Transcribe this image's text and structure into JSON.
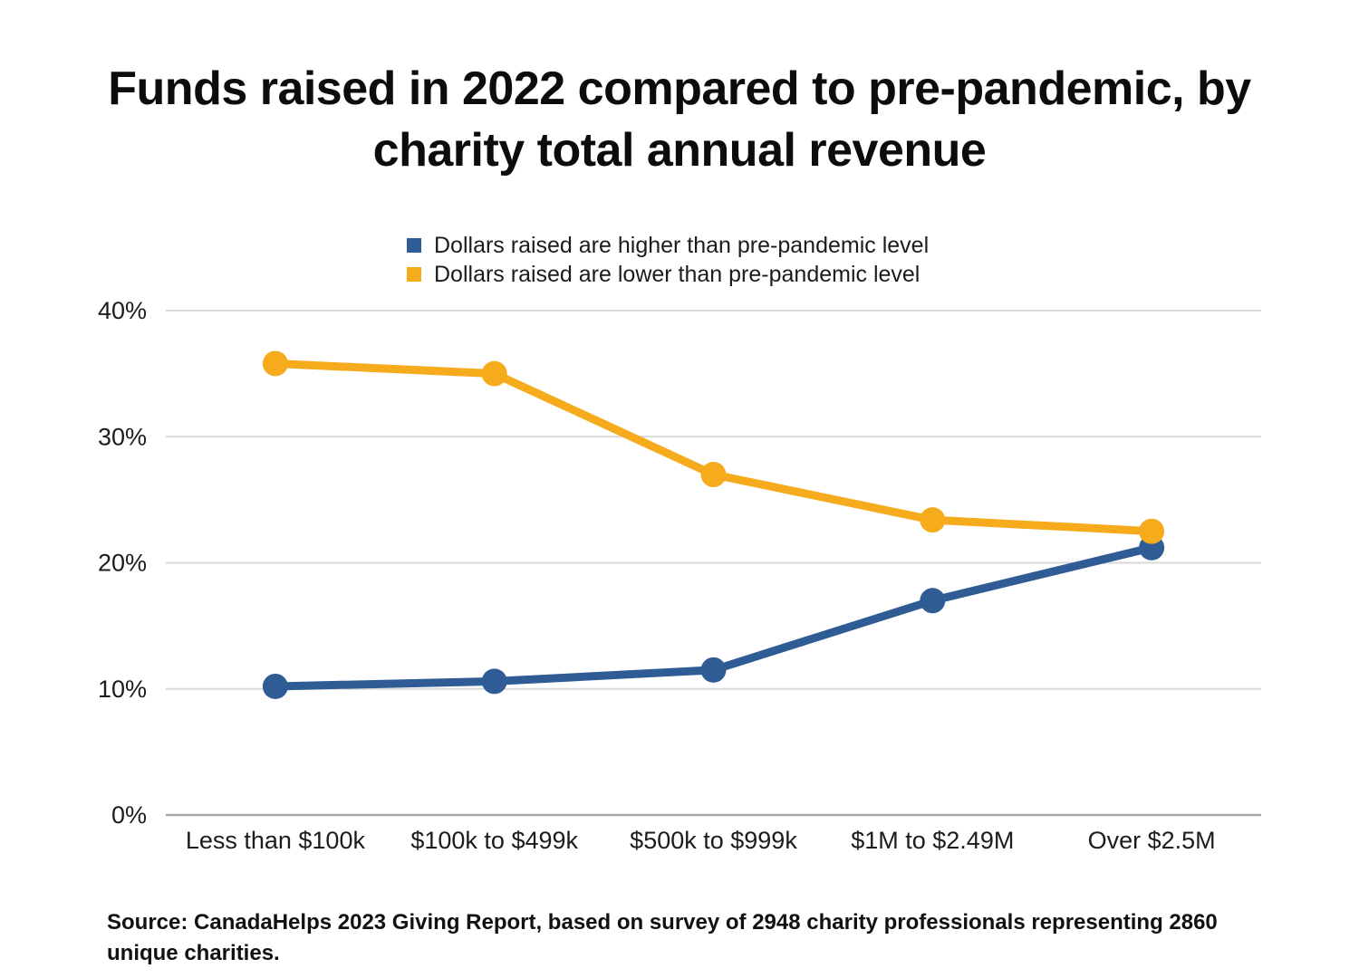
{
  "title": {
    "line1": "Funds raised in 2022 compared to pre-pandemic, by",
    "line2": "charity total annual revenue"
  },
  "source_note": "Source: CanadaHelps 2023 Giving Report, based on survey of 2948 charity professionals representing 2860 unique charities.",
  "colors": {
    "grid_line": "#d9d9d9",
    "axis_line": "#a6a6a6",
    "text": "#1c1c1c",
    "series_higher_blue": "#2f5c94",
    "series_lower_yellow": "#f5ab1c"
  },
  "chart_data": {
    "type": "line",
    "title": "Funds raised in 2022 compared to pre-pandemic, by charity total annual revenue",
    "categories": [
      "Less than $100k",
      "$100k to $499k",
      "$500k to $999k",
      "$1M to $2.49M",
      "Over $2.5M"
    ],
    "series": [
      {
        "name": "Dollars raised are higher than pre-pandemic level",
        "color": "#2f5c94",
        "values": [
          10.2,
          10.6,
          11.5,
          17.0,
          21.2
        ]
      },
      {
        "name": "Dollars raised are lower than pre-pandemic level",
        "color": "#f5ab1c",
        "values": [
          35.8,
          35.0,
          27.0,
          23.4,
          22.5
        ]
      }
    ],
    "ylim": [
      0,
      40
    ],
    "yticks": [
      {
        "label": "0%",
        "value": 0
      },
      {
        "label": "10%",
        "value": 10
      },
      {
        "label": "20%",
        "value": 20
      },
      {
        "label": "30%",
        "value": 30
      },
      {
        "label": "40%",
        "value": 40
      }
    ],
    "grid": true,
    "legend_position": "top",
    "xlabel": "",
    "ylabel": ""
  }
}
